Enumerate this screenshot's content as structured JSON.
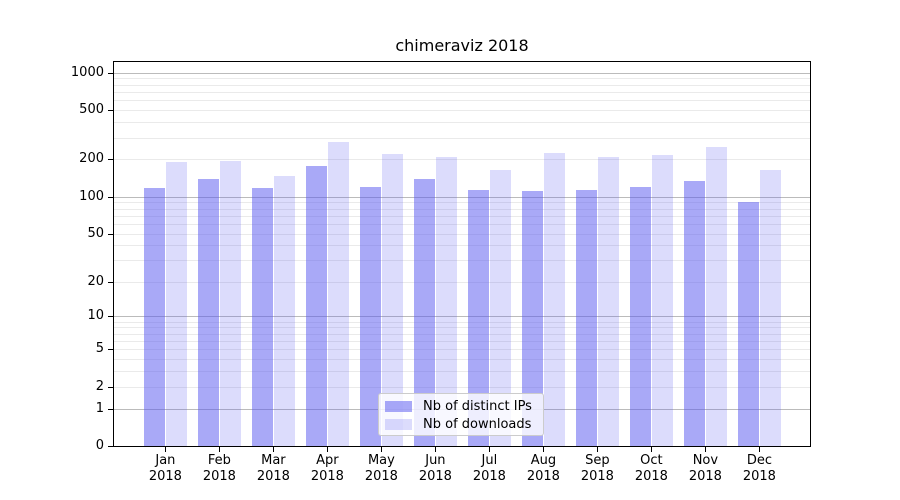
{
  "chart_data": {
    "type": "bar",
    "title": "chimeraviz 2018",
    "scale": "log1p",
    "categories": [
      "Jan",
      "Feb",
      "Mar",
      "Apr",
      "May",
      "Jun",
      "Jul",
      "Aug",
      "Sep",
      "Oct",
      "Nov",
      "Dec"
    ],
    "year": "2018",
    "series": [
      {
        "name": "Nb of distinct IPs",
        "color": "rgba(90,90,240,0.52)",
        "values": [
          117,
          138,
          117,
          177,
          119,
          138,
          113,
          111,
          113,
          119,
          134,
          91
        ]
      },
      {
        "name": "Nb of downloads",
        "color": "rgba(90,90,240,0.21)",
        "values": [
          191,
          196,
          147,
          275,
          223,
          211,
          164,
          224,
          208,
          218,
          254,
          164
        ]
      }
    ],
    "yticks": [
      0,
      1,
      2,
      5,
      10,
      20,
      50,
      100,
      200,
      500,
      1000
    ],
    "major_gridlines": [
      1,
      10,
      100,
      1000
    ],
    "minor_gridlines": [
      2,
      3,
      4,
      5,
      6,
      7,
      8,
      9,
      20,
      30,
      40,
      50,
      60,
      70,
      80,
      90,
      200,
      300,
      400,
      500,
      600,
      700,
      800,
      900
    ],
    "ylim": [
      0,
      1200
    ],
    "legend_position": "lower-center",
    "grid": true
  },
  "colors": {
    "grid_major": "#bbbbbb",
    "grid_minor": "#eaeaea",
    "axis": "#000000",
    "legend_border": "#cccccc",
    "text": "#000000"
  }
}
